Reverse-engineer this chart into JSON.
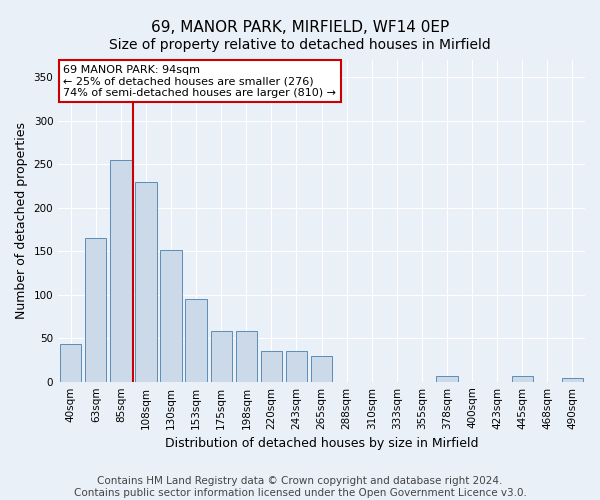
{
  "title": "69, MANOR PARK, MIRFIELD, WF14 0EP",
  "subtitle": "Size of property relative to detached houses in Mirfield",
  "xlabel": "Distribution of detached houses by size in Mirfield",
  "ylabel": "Number of detached properties",
  "categories": [
    "40sqm",
    "63sqm",
    "85sqm",
    "108sqm",
    "130sqm",
    "153sqm",
    "175sqm",
    "198sqm",
    "220sqm",
    "243sqm",
    "265sqm",
    "288sqm",
    "310sqm",
    "333sqm",
    "355sqm",
    "378sqm",
    "400sqm",
    "423sqm",
    "445sqm",
    "468sqm",
    "490sqm"
  ],
  "values": [
    43,
    165,
    255,
    230,
    152,
    95,
    58,
    58,
    35,
    35,
    30,
    0,
    0,
    0,
    0,
    7,
    0,
    0,
    7,
    0,
    4
  ],
  "bar_color": "#ccd9e8",
  "bar_edge_color": "#5b8db8",
  "vline_x_index": 2.5,
  "vline_color": "#cc0000",
  "annotation_box_text": "69 MANOR PARK: 94sqm\n← 25% of detached houses are smaller (276)\n74% of semi-detached houses are larger (810) →",
  "ylim": [
    0,
    370
  ],
  "yticks": [
    0,
    50,
    100,
    150,
    200,
    250,
    300,
    350
  ],
  "footer_text": "Contains HM Land Registry data © Crown copyright and database right 2024.\nContains public sector information licensed under the Open Government Licence v3.0.",
  "bg_color": "#eaf0f8",
  "plot_bg_color": "#eaf0f8",
  "title_fontsize": 11,
  "subtitle_fontsize": 10,
  "tick_fontsize": 7.5,
  "footer_fontsize": 7.5,
  "ylabel_fontsize": 9,
  "xlabel_fontsize": 9
}
